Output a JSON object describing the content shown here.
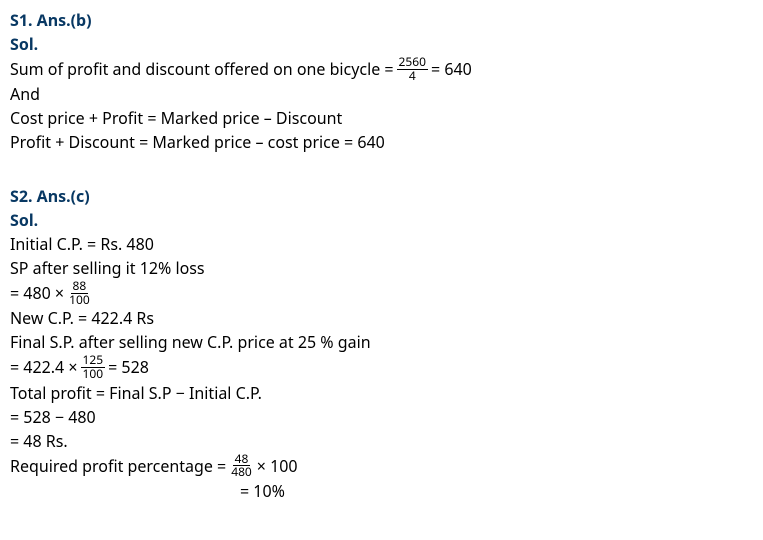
{
  "s1": {
    "heading": "S1. Ans.(b)",
    "sol": "Sol.",
    "l1a": "Sum of profit and discount offered on one bicycle = ",
    "l1_num": "2560",
    "l1_den": "4",
    "l1b": " = 640",
    "l2": "And",
    "l3": "Cost price + Profit = Marked price – Discount",
    "l4": "Profit + Discount = Marked price – cost price = 640"
  },
  "s2": {
    "heading": "S2. Ans.(c)",
    "sol": "Sol.",
    "l1": "Initial C.P. = Rs. 480",
    "l2": "SP after selling it 12% loss",
    "l3a": "= 480 × ",
    "l3_num": "88",
    "l3_den": "100",
    "l4": "New C.P. = 422.4 Rs",
    "l5": "Final S.P. after selling new C.P. price at 25  % gain",
    "l6a": "= 422.4 × ",
    "l6_num": "125",
    "l6_den": "100",
    "l6b": " = 528",
    "l7": "Total profit = Final S.P  −  Initial C.P.",
    "l8": "= 528 − 480",
    "l9": "= 48 Rs.",
    "l10a": "Required profit percentage = ",
    "l10_num": "48",
    "l10_den": "480",
    "l10b": "  × 100",
    "l11": "= 10%"
  },
  "colors": {
    "heading": "#083863",
    "text": "#000000",
    "bg": "#ffffff"
  }
}
